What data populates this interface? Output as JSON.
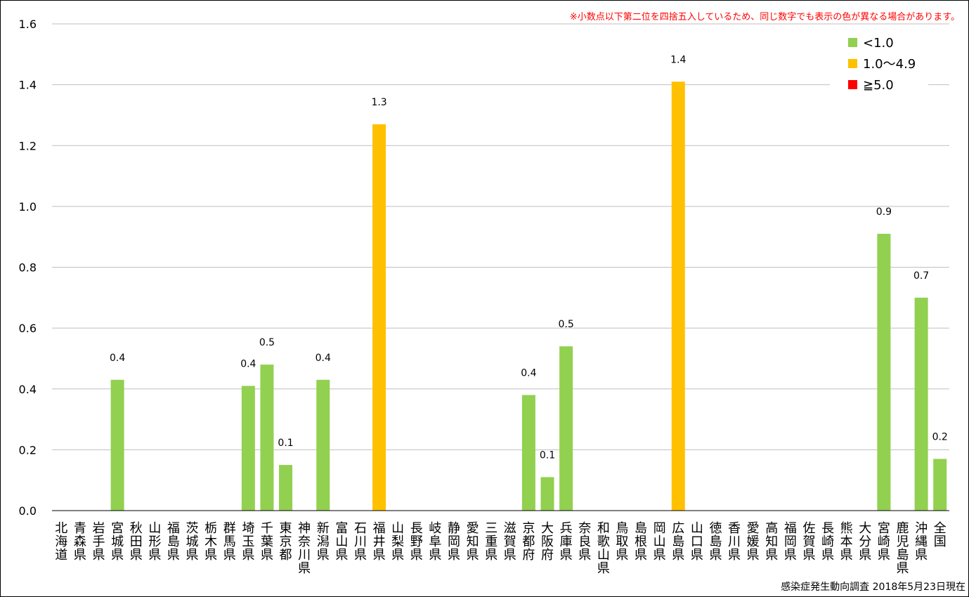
{
  "note": "※小数点以下第二位を四捨五入しているため、同じ数字でも表示の色が異なる場合があります。",
  "source": "感染症発生動向調査 2018年5月23日現在",
  "colors": {
    "low": "#92d050",
    "mid": "#ffc000",
    "high": "#ff0000",
    "grid": "#bfbfbf",
    "axis": "#000000"
  },
  "legend": [
    {
      "label": "<1.0",
      "color": "#92d050"
    },
    {
      "label": "1.0～4.9",
      "color": "#ffc000"
    },
    {
      "label": "≧5.0",
      "color": "#ff0000"
    }
  ],
  "chart_data": {
    "type": "bar",
    "ylim": [
      0,
      1.6
    ],
    "yticks": [
      "0.0",
      "0.2",
      "0.4",
      "0.6",
      "0.8",
      "1.0",
      "1.2",
      "1.4",
      "1.6"
    ],
    "grid": true,
    "legend_position": "top-right",
    "categories": [
      "北海道",
      "青森県",
      "岩手県",
      "宮城県",
      "秋田県",
      "山形県",
      "福島県",
      "茨城県",
      "栃木県",
      "群馬県",
      "埼玉県",
      "千葉県",
      "東京都",
      "神奈川県",
      "新潟県",
      "富山県",
      "石川県",
      "福井県",
      "山梨県",
      "長野県",
      "岐阜県",
      "静岡県",
      "愛知県",
      "三重県",
      "滋賀県",
      "京都府",
      "大阪府",
      "兵庫県",
      "奈良県",
      "和歌山県",
      "鳥取県",
      "島根県",
      "岡山県",
      "広島県",
      "山口県",
      "徳島県",
      "香川県",
      "愛媛県",
      "高知県",
      "福岡県",
      "佐賀県",
      "長崎県",
      "熊本県",
      "大分県",
      "宮崎県",
      "鹿児島県",
      "沖縄県",
      "全国"
    ],
    "values": [
      0,
      0,
      0,
      0.43,
      0,
      0,
      0,
      0,
      0,
      0,
      0.41,
      0.48,
      0.15,
      0,
      0.43,
      0,
      0,
      1.27,
      0,
      0,
      0,
      0,
      0,
      0,
      0,
      0.38,
      0.11,
      0.54,
      0,
      0,
      0,
      0,
      0,
      1.41,
      0,
      0,
      0,
      0,
      0,
      0,
      0,
      0,
      0,
      0,
      0.91,
      0,
      0.7,
      0.17
    ],
    "data_labels": [
      "",
      "",
      "",
      "0.4",
      "",
      "",
      "",
      "",
      "",
      "",
      "0.4",
      "0.5",
      "0.1",
      "",
      "0.4",
      "",
      "",
      "1.3",
      "",
      "",
      "",
      "",
      "",
      "",
      "",
      "0.4",
      "0.1",
      "0.5",
      "",
      "",
      "",
      "",
      "",
      "1.4",
      "",
      "",
      "",
      "",
      "",
      "",
      "",
      "",
      "",
      "",
      "0.9",
      "",
      "0.7",
      "0.2"
    ]
  }
}
